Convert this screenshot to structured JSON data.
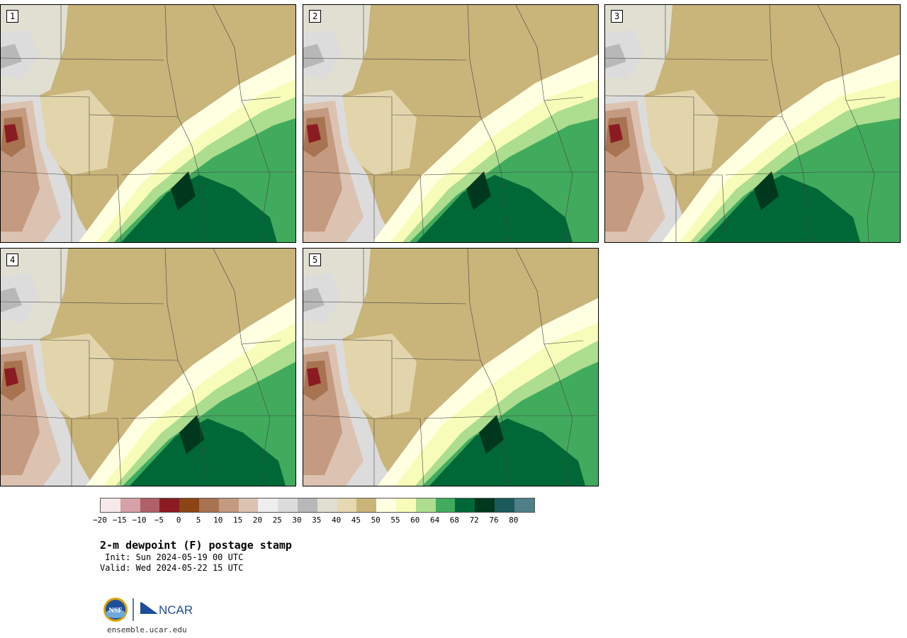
{
  "panels": [
    {
      "label": "1",
      "variant": 0
    },
    {
      "label": "2",
      "variant": 1
    },
    {
      "label": "3",
      "variant": 2
    },
    {
      "label": "4",
      "variant": 3
    },
    {
      "label": "5",
      "variant": 4
    }
  ],
  "colorbar": {
    "colors": [
      "#f7e9e9",
      "#d4a2a8",
      "#b06068",
      "#8b1b22",
      "#8b4513",
      "#a87350",
      "#c49a80",
      "#dcc3b1",
      "#eeeeee",
      "#dcdcdc",
      "#b8b8b8",
      "#e0dfd2",
      "#e6d8b0",
      "#c9b47a",
      "#ffffe2",
      "#f7fcb9",
      "#addd8e",
      "#41ab5d",
      "#006837",
      "#00381e",
      "#1a5a5a",
      "#4f7f88"
    ],
    "ticks": [
      "−20",
      "−15",
      "−10",
      "−5",
      "0",
      "5",
      "10",
      "15",
      "20",
      "25",
      "30",
      "35",
      "40",
      "45",
      "50",
      "55",
      "60",
      "64",
      "68",
      "72",
      "76",
      "80"
    ]
  },
  "title": "2-m dewpoint (F) postage stamp",
  "init": " Init: Sun 2024-05-19 00 UTC",
  "valid": "Valid: Wed 2024-05-22 15 UTC",
  "logos": {
    "left": "NSF",
    "right": "NCAR"
  },
  "site": "ensemble.ucar.edu"
}
